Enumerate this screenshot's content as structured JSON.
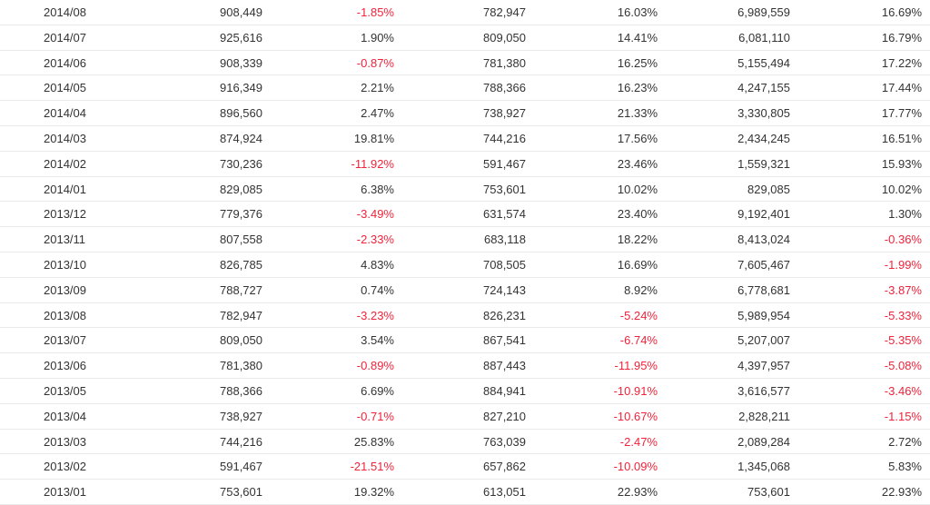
{
  "colors": {
    "text": "#333333",
    "negative": "#f0233a",
    "border": "#e9e9e9"
  },
  "rows": [
    [
      "2014/08",
      "908,449",
      "-1.85%",
      "782,947",
      "16.03%",
      "6,989,559",
      "16.69%"
    ],
    [
      "2014/07",
      "925,616",
      "1.90%",
      "809,050",
      "14.41%",
      "6,081,110",
      "16.79%"
    ],
    [
      "2014/06",
      "908,339",
      "-0.87%",
      "781,380",
      "16.25%",
      "5,155,494",
      "17.22%"
    ],
    [
      "2014/05",
      "916,349",
      "2.21%",
      "788,366",
      "16.23%",
      "4,247,155",
      "17.44%"
    ],
    [
      "2014/04",
      "896,560",
      "2.47%",
      "738,927",
      "21.33%",
      "3,330,805",
      "17.77%"
    ],
    [
      "2014/03",
      "874,924",
      "19.81%",
      "744,216",
      "17.56%",
      "2,434,245",
      "16.51%"
    ],
    [
      "2014/02",
      "730,236",
      "-11.92%",
      "591,467",
      "23.46%",
      "1,559,321",
      "15.93%"
    ],
    [
      "2014/01",
      "829,085",
      "6.38%",
      "753,601",
      "10.02%",
      "829,085",
      "10.02%"
    ],
    [
      "2013/12",
      "779,376",
      "-3.49%",
      "631,574",
      "23.40%",
      "9,192,401",
      "1.30%"
    ],
    [
      "2013/11",
      "807,558",
      "-2.33%",
      "683,118",
      "18.22%",
      "8,413,024",
      "-0.36%"
    ],
    [
      "2013/10",
      "826,785",
      "4.83%",
      "708,505",
      "16.69%",
      "7,605,467",
      "-1.99%"
    ],
    [
      "2013/09",
      "788,727",
      "0.74%",
      "724,143",
      "8.92%",
      "6,778,681",
      "-3.87%"
    ],
    [
      "2013/08",
      "782,947",
      "-3.23%",
      "826,231",
      "-5.24%",
      "5,989,954",
      "-5.33%"
    ],
    [
      "2013/07",
      "809,050",
      "3.54%",
      "867,541",
      "-6.74%",
      "5,207,007",
      "-5.35%"
    ],
    [
      "2013/06",
      "781,380",
      "-0.89%",
      "887,443",
      "-11.95%",
      "4,397,957",
      "-5.08%"
    ],
    [
      "2013/05",
      "788,366",
      "6.69%",
      "884,941",
      "-10.91%",
      "3,616,577",
      "-3.46%"
    ],
    [
      "2013/04",
      "738,927",
      "-0.71%",
      "827,210",
      "-10.67%",
      "2,828,211",
      "-1.15%"
    ],
    [
      "2013/03",
      "744,216",
      "25.83%",
      "763,039",
      "-2.47%",
      "2,089,284",
      "2.72%"
    ],
    [
      "2013/02",
      "591,467",
      "-21.51%",
      "657,862",
      "-10.09%",
      "1,345,068",
      "5.83%"
    ],
    [
      "2013/01",
      "753,601",
      "19.32%",
      "613,051",
      "22.93%",
      "753,601",
      "22.93%"
    ]
  ]
}
